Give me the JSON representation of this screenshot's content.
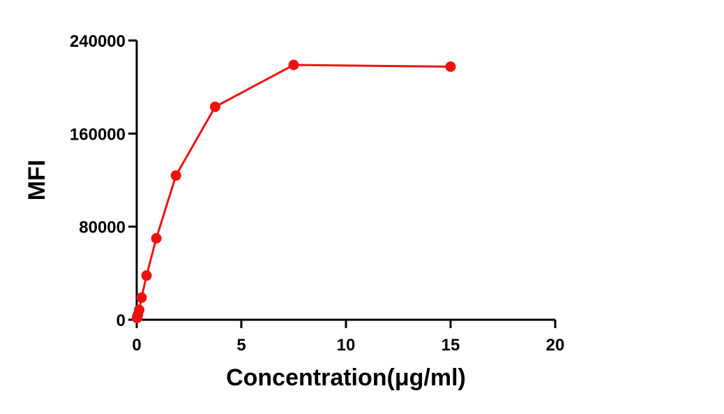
{
  "chart_data": {
    "type": "line",
    "title": "",
    "xlabel": "Concentration(μg/ml)",
    "ylabel": "MFI",
    "xlim": [
      0,
      20
    ],
    "ylim": [
      0,
      240000
    ],
    "x_ticks": [
      "0",
      "5",
      "10",
      "15",
      "20"
    ],
    "y_ticks": [
      "0",
      "80000",
      "160000",
      "240000"
    ],
    "grid": false,
    "legend": "none",
    "series": [
      {
        "color": "#ee1111",
        "x": [
          0.0146,
          0.0293,
          0.0586,
          0.117,
          0.234,
          0.469,
          0.938,
          1.875,
          3.75,
          7.5,
          15
        ],
        "y": [
          1500,
          3000,
          4500,
          8500,
          19000,
          38000,
          70000,
          124000,
          183000,
          219000,
          217500
        ]
      }
    ]
  }
}
